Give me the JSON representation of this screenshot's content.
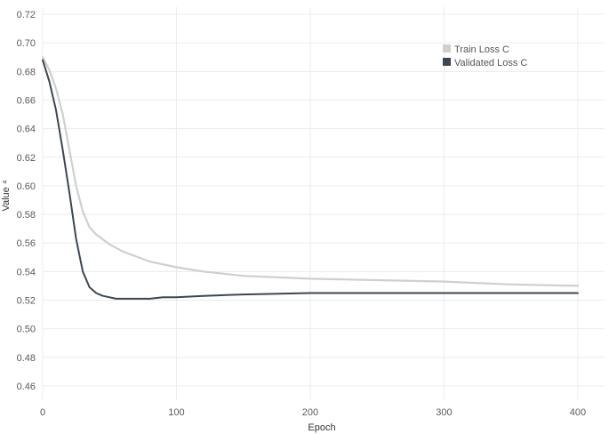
{
  "chart_data": {
    "type": "line",
    "title": "",
    "xlabel": "Epoch",
    "ylabel": "Value ⁴",
    "xlim": [
      0,
      420
    ],
    "ylim": [
      0.45,
      0.725
    ],
    "xticks": [
      0,
      100,
      200,
      300,
      400
    ],
    "yticks": [
      0.46,
      0.48,
      0.5,
      0.52,
      0.54,
      0.56,
      0.58,
      0.6,
      0.62,
      0.64,
      0.66,
      0.68,
      0.7,
      0.72
    ],
    "grid": true,
    "legend_position": "top-right",
    "series": [
      {
        "name": "Train Loss C",
        "color": "#cfcfcf",
        "x": [
          0,
          5,
          10,
          15,
          20,
          25,
          30,
          35,
          40,
          50,
          60,
          80,
          100,
          120,
          150,
          200,
          250,
          300,
          350,
          400
        ],
        "y": [
          0.69,
          0.681,
          0.668,
          0.65,
          0.625,
          0.6,
          0.582,
          0.571,
          0.566,
          0.559,
          0.554,
          0.547,
          0.543,
          0.54,
          0.537,
          0.535,
          0.534,
          0.533,
          0.531,
          0.53
        ]
      },
      {
        "name": "Validated Loss C",
        "color": "#3d4654",
        "x": [
          0,
          5,
          10,
          15,
          20,
          25,
          30,
          35,
          40,
          45,
          50,
          55,
          60,
          70,
          80,
          90,
          100,
          120,
          150,
          200,
          250,
          300,
          350,
          400
        ],
        "y": [
          0.688,
          0.673,
          0.653,
          0.625,
          0.595,
          0.563,
          0.54,
          0.529,
          0.525,
          0.523,
          0.522,
          0.521,
          0.521,
          0.521,
          0.521,
          0.522,
          0.522,
          0.523,
          0.524,
          0.525,
          0.525,
          0.525,
          0.525,
          0.525
        ]
      }
    ]
  }
}
